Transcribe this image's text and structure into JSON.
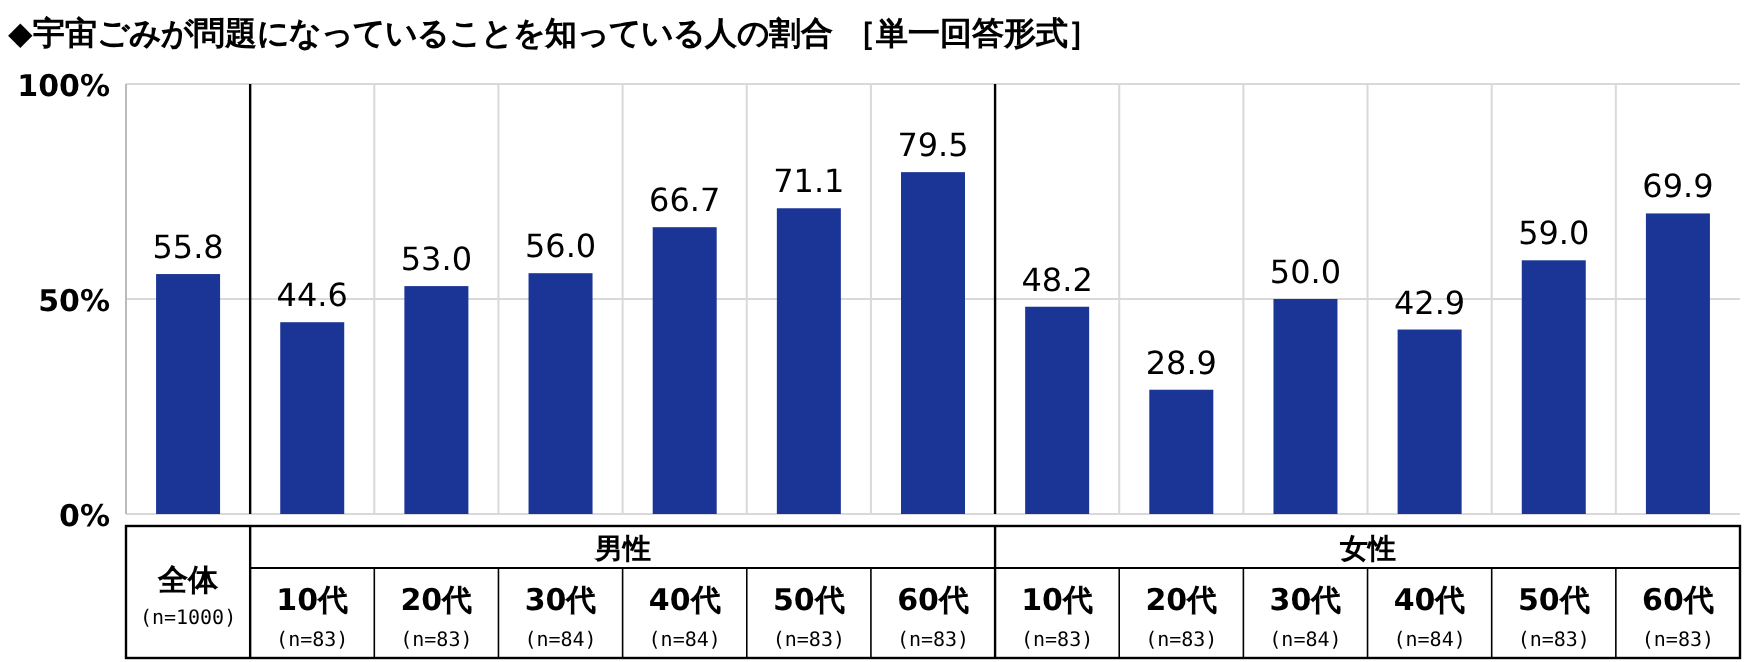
{
  "chart_data": {
    "type": "bar",
    "title": "◆宇宙ごみが問題になっていることを知っている人の割合 ［単一回答形式］",
    "categories": [
      "全体(n=1000)",
      "10代(n=83)",
      "20代(n=83)",
      "30代(n=84)",
      "40代(n=84)",
      "50代(n=83)",
      "60代(n=83)",
      "10代(n=83)",
      "20代(n=83)",
      "30代(n=84)",
      "40代(n=84)",
      "50代(n=83)",
      "60代(n=83)"
    ],
    "values": [
      55.8,
      44.6,
      53.0,
      56.0,
      66.7,
      71.1,
      79.5,
      48.2,
      28.9,
      50.0,
      42.9,
      59.0,
      69.9
    ],
    "value_labels": [
      "55.8",
      "44.6",
      "53.0",
      "56.0",
      "66.7",
      "71.1",
      "79.5",
      "48.2",
      "28.9",
      "50.0",
      "42.9",
      "59.0",
      "69.9"
    ],
    "color": "#1a3595",
    "ylim": [
      0,
      100
    ],
    "yticks": [
      {
        "value": 0,
        "label": "0%"
      },
      {
        "value": 50,
        "label": "50%"
      },
      {
        "value": 100,
        "label": "100%"
      }
    ],
    "grid": "y",
    "annotations": [
      "男性",
      "女性"
    ]
  }
}
